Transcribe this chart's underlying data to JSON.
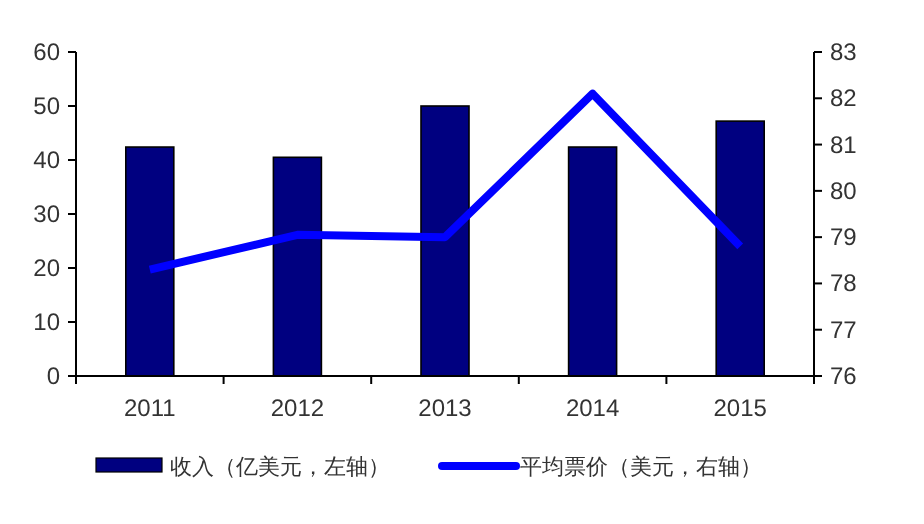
{
  "chart_data": {
    "type": "bar",
    "categories": [
      "2011",
      "2012",
      "2013",
      "2014",
      "2015"
    ],
    "series": [
      {
        "name": "收入（亿美元，左轴）",
        "color": "#000080",
        "values": [
          42.4,
          40.5,
          50.0,
          42.4,
          47.2
        ]
      },
      {
        "name": "平均票价（美元，右轴）",
        "type": "line",
        "axis": "y2",
        "color": "#0000ff",
        "values": [
          78.3,
          79.05,
          79.0,
          82.1,
          78.8
        ]
      }
    ],
    "ylim": [
      0,
      60
    ],
    "yticks": [
      0,
      10,
      20,
      30,
      40,
      50,
      60
    ],
    "y2lim": [
      76,
      83
    ],
    "y2ticks": [
      76,
      77,
      78,
      79,
      80,
      81,
      82,
      83
    ],
    "legend": "bottom",
    "grid": false,
    "marker": "none",
    "line_style": "solid"
  }
}
